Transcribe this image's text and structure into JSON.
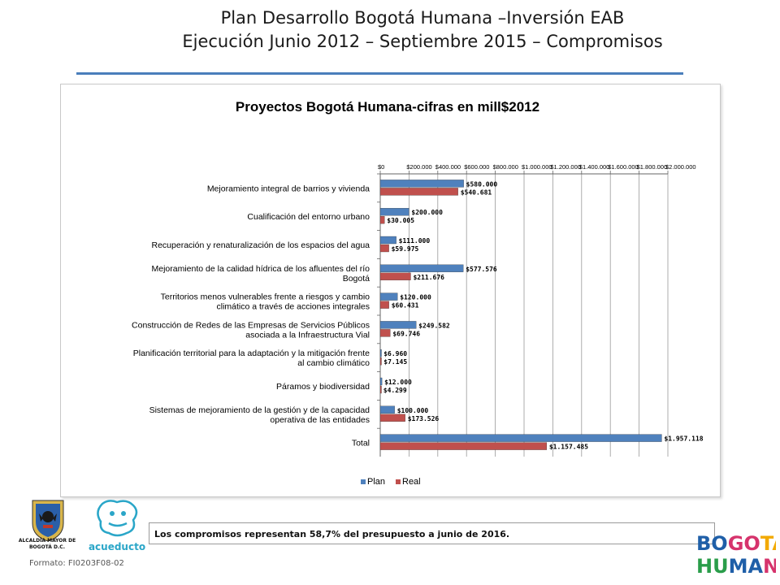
{
  "slide": {
    "title_line1": "Plan Desarrollo Bogotá Humana –Inversión EAB",
    "title_line2": "Ejecución Junio 2012 – Septiembre 2015 – Compromisos",
    "note": "Los compromisos representan 58,7% del presupuesto a junio de 2016.",
    "formato": "Formato: FI0203F08-02",
    "logos": {
      "alcaldia": "ALCALDÍA MAYOR DE BOGOTÁ D.C.",
      "acueducto": "acueducto",
      "bogota_humana": "BOGOTÁ HUMANA"
    }
  },
  "chart_data": {
    "type": "bar",
    "orientation": "horizontal",
    "title": "Proyectos Bogotá Humana-cifras  en mill$2012",
    "xlim": [
      0,
      2000000
    ],
    "x_ticks": [
      "$0",
      "$200.000",
      "$400.000",
      "$600.000",
      "$800.000",
      "$1.000.000",
      "$1.200.000",
      "$1.400.000",
      "$1.600.000",
      "$1.800.000",
      "$2.000.000"
    ],
    "x_axis_position": "top",
    "grid": true,
    "legend": "bottom",
    "categories": [
      "Mejoramiento integral de barrios y vivienda",
      "Cualificación del entorno urbano",
      "Recuperación y renaturalización de los espacios del agua",
      "Mejoramiento de la calidad hídrica de los afluentes del río Bogotá",
      "Territorios menos vulnerables frente a riesgos y cambio climático a través de acciones integrales",
      "Construcción de Redes de las Empresas de Servicios Públicos asociada a la Infraestructura Vial",
      "Planificación territorial para la adaptación y la mitigación frente al cambio climático",
      "Páramos y biodiversidad",
      "Sistemas de mejoramiento de la gestión y de la capacidad operativa de las entidades",
      "Total"
    ],
    "category_lines": [
      [
        "Mejoramiento integral de barrios y vivienda"
      ],
      [
        "Cualificación del entorno urbano"
      ],
      [
        "Recuperación y renaturalización de los espacios del agua"
      ],
      [
        "Mejoramiento de la calidad hídrica de los afluentes del río",
        "Bogotá"
      ],
      [
        "Territorios menos vulnerables frente a riesgos y cambio",
        "climático a través de acciones integrales"
      ],
      [
        "Construcción de Redes de las Empresas de Servicios Públicos",
        "asociada a la Infraestructura Vial"
      ],
      [
        "Planificación territorial para la adaptación y la mitigación frente",
        "al cambio climático"
      ],
      [
        "Páramos y biodiversidad"
      ],
      [
        "Sistemas de mejoramiento de la gestión y de la capacidad",
        "operativa de las entidades"
      ],
      [
        "Total"
      ]
    ],
    "series": [
      {
        "name": "Plan",
        "color": "#4f81bd",
        "values": [
          580000,
          200000,
          111000,
          577576,
          120000,
          249582,
          6960,
          12000,
          100000,
          1957118
        ],
        "labels": [
          "$580.000",
          "$200.000",
          "$111.000",
          "$577.576",
          "$120.000",
          "$249.582",
          "$6.960",
          "$12.000",
          "$100.000",
          "$1.957.118"
        ]
      },
      {
        "name": "Real",
        "color": "#c0504d",
        "values": [
          540681,
          30005,
          59975,
          211676,
          60431,
          69746,
          7145,
          4299,
          173526,
          1157485
        ],
        "labels": [
          "$540.681",
          "$30.005",
          "$59.975",
          "$211.676",
          "$60.431",
          "$69.746",
          "$7.145",
          "$4.299",
          "$173.526",
          "$1.157.485"
        ]
      }
    ]
  }
}
